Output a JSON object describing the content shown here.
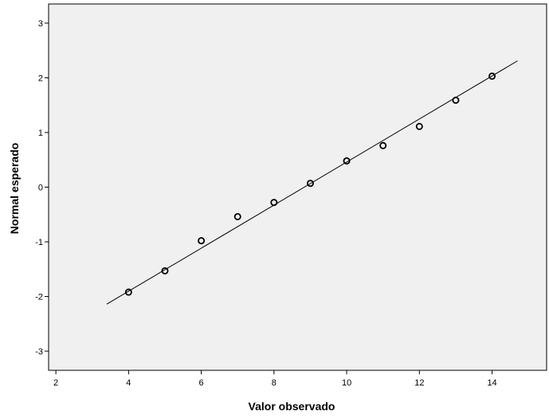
{
  "chart_data": {
    "type": "scatter",
    "xlabel": "Valor observado",
    "ylabel": "Normal esperado",
    "xlim": [
      1.8,
      15.5
    ],
    "ylim": [
      -3.35,
      3.35
    ],
    "xticks": [
      2,
      4,
      6,
      8,
      10,
      12,
      14
    ],
    "yticks": [
      -3,
      -2,
      -1,
      0,
      1,
      2,
      3
    ],
    "grid": false,
    "background_color": "#f0f0f0",
    "points": [
      {
        "x": 4,
        "y": -1.92
      },
      {
        "x": 5,
        "y": -1.53
      },
      {
        "x": 6,
        "y": -0.98
      },
      {
        "x": 7,
        "y": -0.54
      },
      {
        "x": 8,
        "y": -0.28
      },
      {
        "x": 9,
        "y": 0.07
      },
      {
        "x": 10,
        "y": 0.48
      },
      {
        "x": 11,
        "y": 0.76
      },
      {
        "x": 12,
        "y": 1.11
      },
      {
        "x": 13,
        "y": 1.59
      },
      {
        "x": 14,
        "y": 2.03
      }
    ],
    "reference_line": {
      "x1": 3.4,
      "y1": -2.14,
      "x2": 14.7,
      "y2": 2.31
    }
  }
}
